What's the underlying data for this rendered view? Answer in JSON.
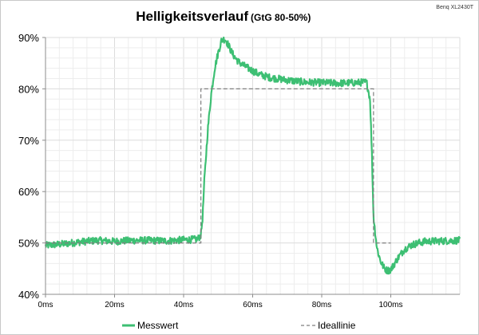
{
  "chart_data": {
    "type": "line",
    "title": "Helligkeitsverlauf",
    "title_suffix": "(GtG 80-50%)",
    "corner_label": "Benq XL2430T",
    "xlabel": "",
    "ylabel": "",
    "x_ticks": [
      "0ms",
      "20ms",
      "40ms",
      "60ms",
      "80ms",
      "100ms"
    ],
    "y_ticks": [
      "40%",
      "50%",
      "60%",
      "70%",
      "80%",
      "90%"
    ],
    "xlim": [
      0,
      120
    ],
    "ylim": [
      40,
      90
    ],
    "grid": true,
    "legend_position": "bottom",
    "series": [
      {
        "name": "Messwert",
        "color": "#3dbf73",
        "style": "solid",
        "x": [
          0,
          5,
          10,
          15,
          20,
          25,
          30,
          35,
          40,
          44,
          45,
          45.5,
          46,
          47,
          48,
          49,
          50,
          51,
          52,
          53,
          54,
          55,
          56,
          58,
          60,
          62,
          65,
          70,
          75,
          80,
          85,
          90,
          93,
          94,
          94.5,
          95,
          96,
          97,
          98,
          99,
          100,
          102,
          104,
          106,
          108,
          110,
          115,
          120
        ],
        "y": [
          49.5,
          49.8,
          50.2,
          50.5,
          50.3,
          50.5,
          50.5,
          50.4,
          50.6,
          50.7,
          51.5,
          55,
          62,
          72,
          79,
          84,
          87,
          89.5,
          89.7,
          88.5,
          87,
          86,
          85.2,
          84.3,
          83.5,
          82.8,
          82.2,
          81.7,
          81.3,
          81.2,
          81.1,
          81.2,
          81.3,
          78,
          68,
          55,
          49,
          46.5,
          45.2,
          44.6,
          44.8,
          47,
          48.8,
          49.6,
          50,
          50.3,
          50.4,
          50.5
        ]
      },
      {
        "name": "Ideallinie",
        "color": "#7f7f7f",
        "style": "dashed",
        "x": [
          0,
          45,
          45,
          95,
          95,
          100
        ],
        "y": [
          50,
          50,
          80,
          80,
          50,
          50
        ]
      }
    ]
  }
}
